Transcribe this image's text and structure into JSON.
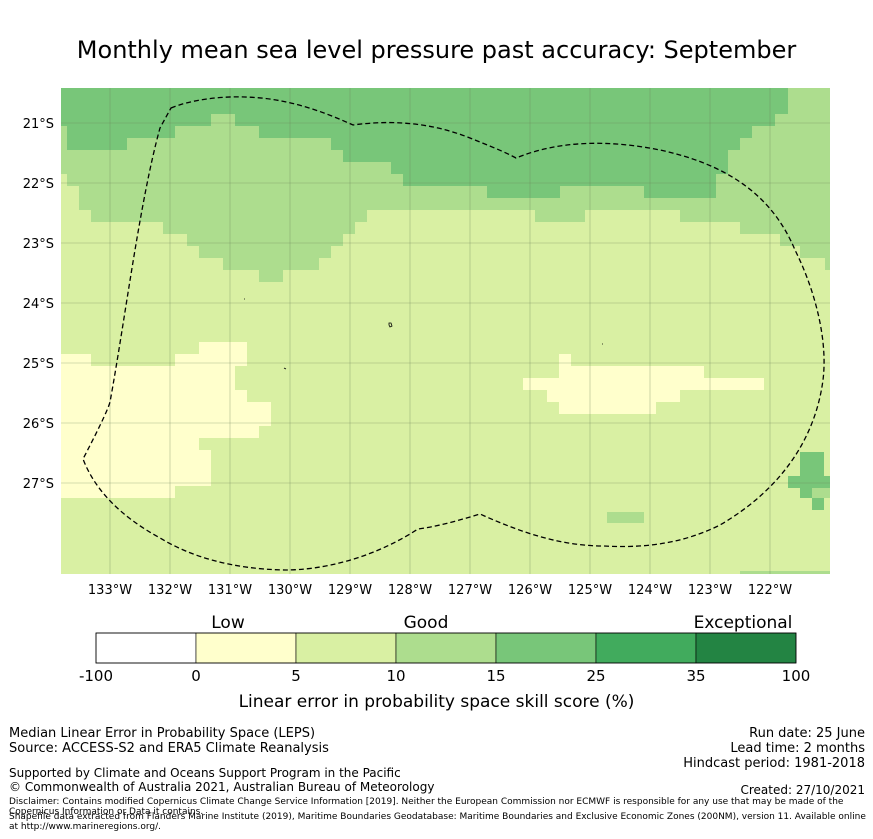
{
  "title": "Monthly mean sea level pressure past accuracy: September",
  "map": {
    "lat_labels": [
      "21°S",
      "22°S",
      "23°S",
      "24°S",
      "25°S",
      "26°S",
      "27°S"
    ],
    "lon_labels": [
      "133°W",
      "132°W",
      "131°W",
      "130°W",
      "129°W",
      "128°W",
      "127°W",
      "126°W",
      "125°W",
      "124°W",
      "123°W",
      "122°W"
    ],
    "lon_range": [
      "133.8°W",
      "121.0°W"
    ],
    "lat_range": [
      "20.6°S",
      "28.4°S"
    ],
    "colors": {
      "grid": "#6b7f5a",
      "boundary": "#000000"
    }
  },
  "colorbar": {
    "category_labels": [
      {
        "label": "Low",
        "value": "0-5"
      },
      {
        "label": "Good",
        "value": "10"
      },
      {
        "label": "Exceptional",
        "value": "35-100"
      }
    ],
    "ticks": [
      "-100",
      "0",
      "5",
      "10",
      "15",
      "25",
      "35",
      "100"
    ],
    "bins": [
      {
        "range": "-100 to 0",
        "color": "#ffffff"
      },
      {
        "range": "0 to 5",
        "color": "#ffffcc"
      },
      {
        "range": "5 to 10",
        "color": "#d9f0a3"
      },
      {
        "range": "10 to 15",
        "color": "#addd8e"
      },
      {
        "range": "15 to 25",
        "color": "#78c679"
      },
      {
        "range": "25 to 35",
        "color": "#41ab5d"
      },
      {
        "range": "35 to 100",
        "color": "#238443"
      }
    ],
    "xlabel": "Linear error in probability space skill score (%)"
  },
  "footer": {
    "left_line1": "Median Linear Error in Probability Space (LEPS)",
    "left_line2": "Source: ACCESS-S2 and ERA5 Climate Reanalysis",
    "supported": "Supported by Climate and Oceans Support Program in the Pacific",
    "copyright": "© Commonwealth of Australia 2021, Australian Bureau of Meteorology",
    "run_date": "Run date: 25 June",
    "lead_time": "Lead time: 2 months",
    "hindcast": "Hindcast period: 1981-2018",
    "created": "Created: 27/10/2021",
    "disclaimer": "Disclaimer: Contains modified Copernicus Climate Change Service Information [2019]. Neither the European Commission nor ECMWF is responsible for any use that may be made of the Copernicus Information or Data it contains.",
    "shapefile": "Shapefile data extracted from Flanders Marine Institute (2019), Maritime Boundaries Geodatabase: Maritime Boundaries and Exclusive Economic Zones (200NM), version 11. Available online at http://www.marineregions.org/."
  }
}
